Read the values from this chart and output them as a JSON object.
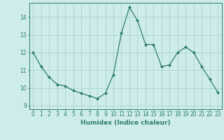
{
  "x": [
    0,
    1,
    2,
    3,
    4,
    5,
    6,
    7,
    8,
    9,
    10,
    11,
    12,
    13,
    14,
    15,
    16,
    17,
    18,
    19,
    20,
    21,
    22,
    23
  ],
  "y": [
    12.0,
    11.2,
    10.6,
    10.2,
    10.1,
    9.85,
    9.7,
    9.55,
    9.4,
    9.7,
    10.75,
    13.1,
    14.55,
    13.8,
    12.45,
    12.45,
    11.2,
    11.3,
    12.0,
    12.3,
    12.0,
    11.2,
    10.5,
    9.75
  ],
  "line_color": "#2e7d6e",
  "marker": "D",
  "marker_size": 2.0,
  "bg_color": "#ceecea",
  "grid_color": "#aad4d0",
  "xlabel": "Humidex (Indice chaleur)",
  "ylabel": "",
  "xlim": [
    -0.5,
    23.5
  ],
  "ylim": [
    8.8,
    14.8
  ],
  "yticks": [
    9,
    10,
    11,
    12,
    13,
    14
  ],
  "xticks": [
    0,
    1,
    2,
    3,
    4,
    5,
    6,
    7,
    8,
    9,
    10,
    11,
    12,
    13,
    14,
    15,
    16,
    17,
    18,
    19,
    20,
    21,
    22,
    23
  ],
  "tick_fontsize": 5.5,
  "xlabel_fontsize": 6.5,
  "axis_color": "#2e7d6e",
  "linewidth": 0.9
}
